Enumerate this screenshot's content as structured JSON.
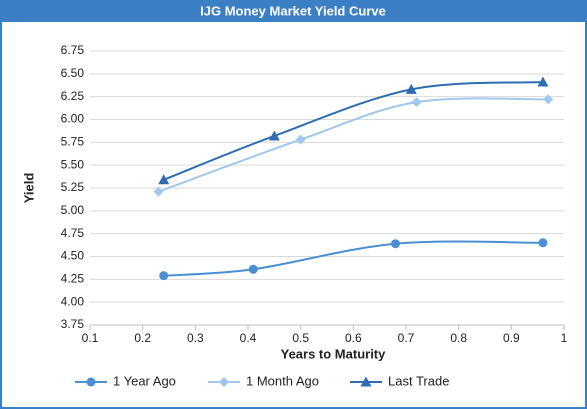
{
  "chart_data": {
    "type": "line",
    "title": "IJG Money Market Yield Curve",
    "x_label": "Years to Maturity",
    "y_label": "Yield",
    "xlim": [
      0.1,
      1
    ],
    "xticks": [
      0.1,
      0.2,
      0.3,
      0.4,
      0.5,
      0.6,
      0.7,
      0.8,
      0.9,
      1
    ],
    "ylim": [
      3.75,
      6.75
    ],
    "yticks": [
      6.75,
      {
        "value": 6.5,
        "label": "6.50"
      },
      6.25,
      {
        "value": 6,
        "label": "6.00"
      },
      5.75,
      {
        "value": 5.5,
        "label": "5.50"
      },
      5.25,
      {
        "value": 5,
        "label": "5.00"
      },
      4.75,
      {
        "value": 4.5,
        "label": "4.50"
      },
      4.25,
      {
        "value": 4,
        "label": "4.00"
      },
      3.75
    ],
    "grid": true,
    "legend": "bottom",
    "series": [
      {
        "name": "1 Year Ago",
        "color": "#4a8fd4",
        "marker": "circle",
        "x": [
          0.24,
          0.41,
          0.68,
          0.96
        ],
        "values": [
          4.29,
          4.36,
          4.64,
          4.65
        ]
      },
      {
        "name": "1 Month Ago",
        "color": "#a3c6ec",
        "marker": "diamond",
        "x": [
          0.23,
          0.5,
          0.72,
          0.97
        ],
        "values": [
          5.21,
          5.78,
          6.19,
          6.22
        ]
      },
      {
        "name": "Last Trade",
        "color": "#2f6db3",
        "marker": "triangle",
        "x": [
          0.24,
          0.45,
          0.71,
          0.96
        ],
        "values": [
          5.34,
          5.82,
          6.33,
          6.41
        ]
      }
    ]
  }
}
